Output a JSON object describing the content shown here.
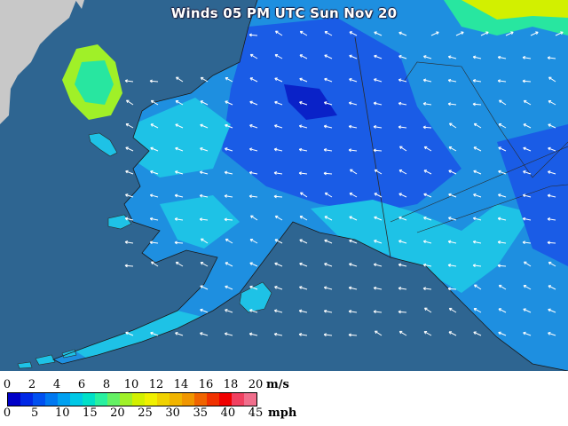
{
  "title": "Winds 05 PM UTC Sun Nov 20",
  "legend": {
    "ms_unit": "m/s",
    "mph_unit": "mph",
    "ms_ticks": [
      "0",
      "2",
      "4",
      "6",
      "8",
      "10",
      "12",
      "14",
      "16",
      "18",
      "20"
    ],
    "mph_ticks": [
      "0",
      "5",
      "10",
      "15",
      "20",
      "25",
      "30",
      "35",
      "40",
      "45"
    ],
    "colors": [
      "#0000c8",
      "#0028e6",
      "#0050f0",
      "#0078f0",
      "#00a0f0",
      "#00c8e6",
      "#00e0c8",
      "#28f0a0",
      "#64f064",
      "#a0f028",
      "#d2f000",
      "#f0f000",
      "#f0d200",
      "#f0b400",
      "#f09600",
      "#f06400",
      "#f03200",
      "#f00000",
      "#f04060",
      "#f06e8c"
    ]
  },
  "map": {
    "ocean_color": "#2e6591",
    "land_color": "#1e8fe0",
    "region": "Alaska"
  }
}
